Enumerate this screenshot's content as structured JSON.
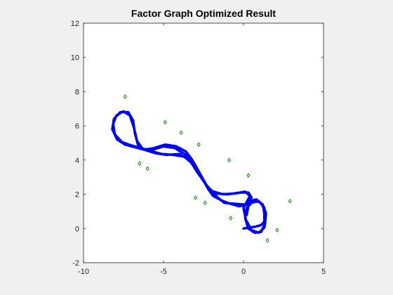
{
  "chart_data": {
    "type": "scatter",
    "title": "Factor Graph Optimized Result",
    "xlabel": "",
    "ylabel": "",
    "xlim": [
      -10,
      5
    ],
    "ylim": [
      -2,
      12
    ],
    "xticks": [
      -10,
      -5,
      0,
      5
    ],
    "yticks": [
      -2,
      0,
      2,
      4,
      6,
      8,
      10,
      12
    ],
    "grid": false,
    "legend": "none",
    "colors": {
      "trajectory": "#0000ff",
      "landmarks": "#008000",
      "axes_background": "#ffffff",
      "figure_background": "#f0f0f0"
    },
    "series": [
      {
        "marker": "line",
        "points": [
          [
            0.0,
            0.0
          ],
          [
            0.3,
            0.05
          ],
          [
            0.7,
            0.1
          ],
          [
            1.1,
            0.2
          ],
          [
            1.3,
            0.4
          ],
          [
            1.3,
            0.9
          ],
          [
            1.2,
            1.4
          ],
          [
            0.9,
            1.6
          ],
          [
            0.5,
            1.5
          ],
          [
            0.2,
            1.2
          ],
          [
            0.1,
            0.6
          ],
          [
            0.3,
            0.0
          ],
          [
            0.7,
            -0.25
          ],
          [
            1.1,
            -0.2
          ],
          [
            1.35,
            0.3
          ],
          [
            1.4,
            0.9
          ],
          [
            1.2,
            1.4
          ],
          [
            0.8,
            1.7
          ],
          [
            0.4,
            1.6
          ],
          [
            0.1,
            1.4
          ],
          [
            -0.6,
            1.45
          ],
          [
            -1.2,
            1.5
          ],
          [
            -1.6,
            1.8
          ],
          [
            -2.0,
            2.1
          ],
          [
            -2.3,
            2.5
          ],
          [
            -2.6,
            3.0
          ],
          [
            -2.9,
            3.5
          ],
          [
            -3.2,
            4.0
          ],
          [
            -3.6,
            4.5
          ],
          [
            -4.2,
            4.8
          ],
          [
            -4.9,
            4.9
          ],
          [
            -5.6,
            4.7
          ],
          [
            -6.2,
            4.6
          ],
          [
            -6.6,
            4.9
          ],
          [
            -6.8,
            5.6
          ],
          [
            -6.9,
            6.3
          ],
          [
            -7.2,
            6.8
          ],
          [
            -7.7,
            6.8
          ],
          [
            -8.1,
            6.4
          ],
          [
            -8.2,
            5.8
          ],
          [
            -7.9,
            5.2
          ],
          [
            -7.4,
            4.9
          ],
          [
            -6.8,
            4.75
          ],
          [
            -6.2,
            4.6
          ],
          [
            -5.5,
            4.4
          ],
          [
            -4.8,
            4.3
          ],
          [
            -4.0,
            4.35
          ],
          [
            -3.4,
            4.0
          ],
          [
            -3.0,
            3.5
          ],
          [
            -2.6,
            2.9
          ],
          [
            -2.2,
            2.4
          ],
          [
            -1.8,
            2.05
          ],
          [
            -1.0,
            2.0
          ],
          [
            -0.2,
            2.1
          ],
          [
            0.3,
            2.1
          ],
          [
            0.5,
            1.8
          ],
          [
            0.25,
            1.4
          ],
          [
            -0.3,
            1.3
          ],
          [
            -1.0,
            1.5
          ],
          [
            -1.4,
            1.65
          ],
          [
            -1.9,
            1.9
          ],
          [
            -2.2,
            2.3
          ],
          [
            -2.5,
            2.8
          ],
          [
            -2.9,
            3.3
          ],
          [
            -3.3,
            3.9
          ],
          [
            -3.6,
            4.3
          ],
          [
            -4.3,
            4.7
          ],
          [
            -5.0,
            4.8
          ],
          [
            -5.7,
            4.6
          ],
          [
            -6.3,
            4.65
          ],
          [
            -6.65,
            5.1
          ],
          [
            -6.85,
            5.9
          ],
          [
            -7.1,
            6.6
          ],
          [
            -7.5,
            6.85
          ],
          [
            -7.95,
            6.6
          ],
          [
            -8.15,
            6.1
          ],
          [
            -8.05,
            5.5
          ],
          [
            -7.6,
            5.05
          ],
          [
            -7.0,
            4.85
          ],
          [
            -6.4,
            4.7
          ],
          [
            -5.9,
            4.55
          ],
          [
            -5.1,
            4.35
          ],
          [
            -4.4,
            4.3
          ],
          [
            -3.7,
            4.2
          ],
          [
            -3.2,
            3.8
          ],
          [
            -2.85,
            3.25
          ],
          [
            -2.45,
            2.7
          ],
          [
            -2.05,
            2.2
          ],
          [
            -1.3,
            2.0
          ],
          [
            -0.5,
            2.05
          ],
          [
            0.1,
            2.15
          ],
          [
            0.4,
            1.9
          ],
          [
            0.2,
            1.55
          ],
          [
            0.0,
            1.2
          ],
          [
            0.15,
            0.5
          ],
          [
            0.5,
            -0.1
          ],
          [
            0.95,
            -0.25
          ],
          [
            1.3,
            0.05
          ],
          [
            1.38,
            0.6
          ],
          [
            1.3,
            1.2
          ],
          [
            1.0,
            1.55
          ],
          [
            0.6,
            1.6
          ],
          [
            0.3,
            1.3
          ],
          [
            0.2,
            0.8
          ]
        ]
      },
      {
        "marker": "diamond",
        "points": [
          [
            -7.4,
            7.7
          ],
          [
            -4.9,
            6.2
          ],
          [
            -3.9,
            5.6
          ],
          [
            -2.8,
            4.9
          ],
          [
            -6.5,
            3.8
          ],
          [
            -6.0,
            3.5
          ],
          [
            -0.9,
            4.0
          ],
          [
            0.3,
            3.1
          ],
          [
            -3.0,
            1.8
          ],
          [
            -2.4,
            1.5
          ],
          [
            -0.8,
            0.6
          ],
          [
            2.9,
            1.6
          ],
          [
            2.1,
            -0.1
          ],
          [
            1.5,
            -0.7
          ]
        ]
      }
    ]
  }
}
